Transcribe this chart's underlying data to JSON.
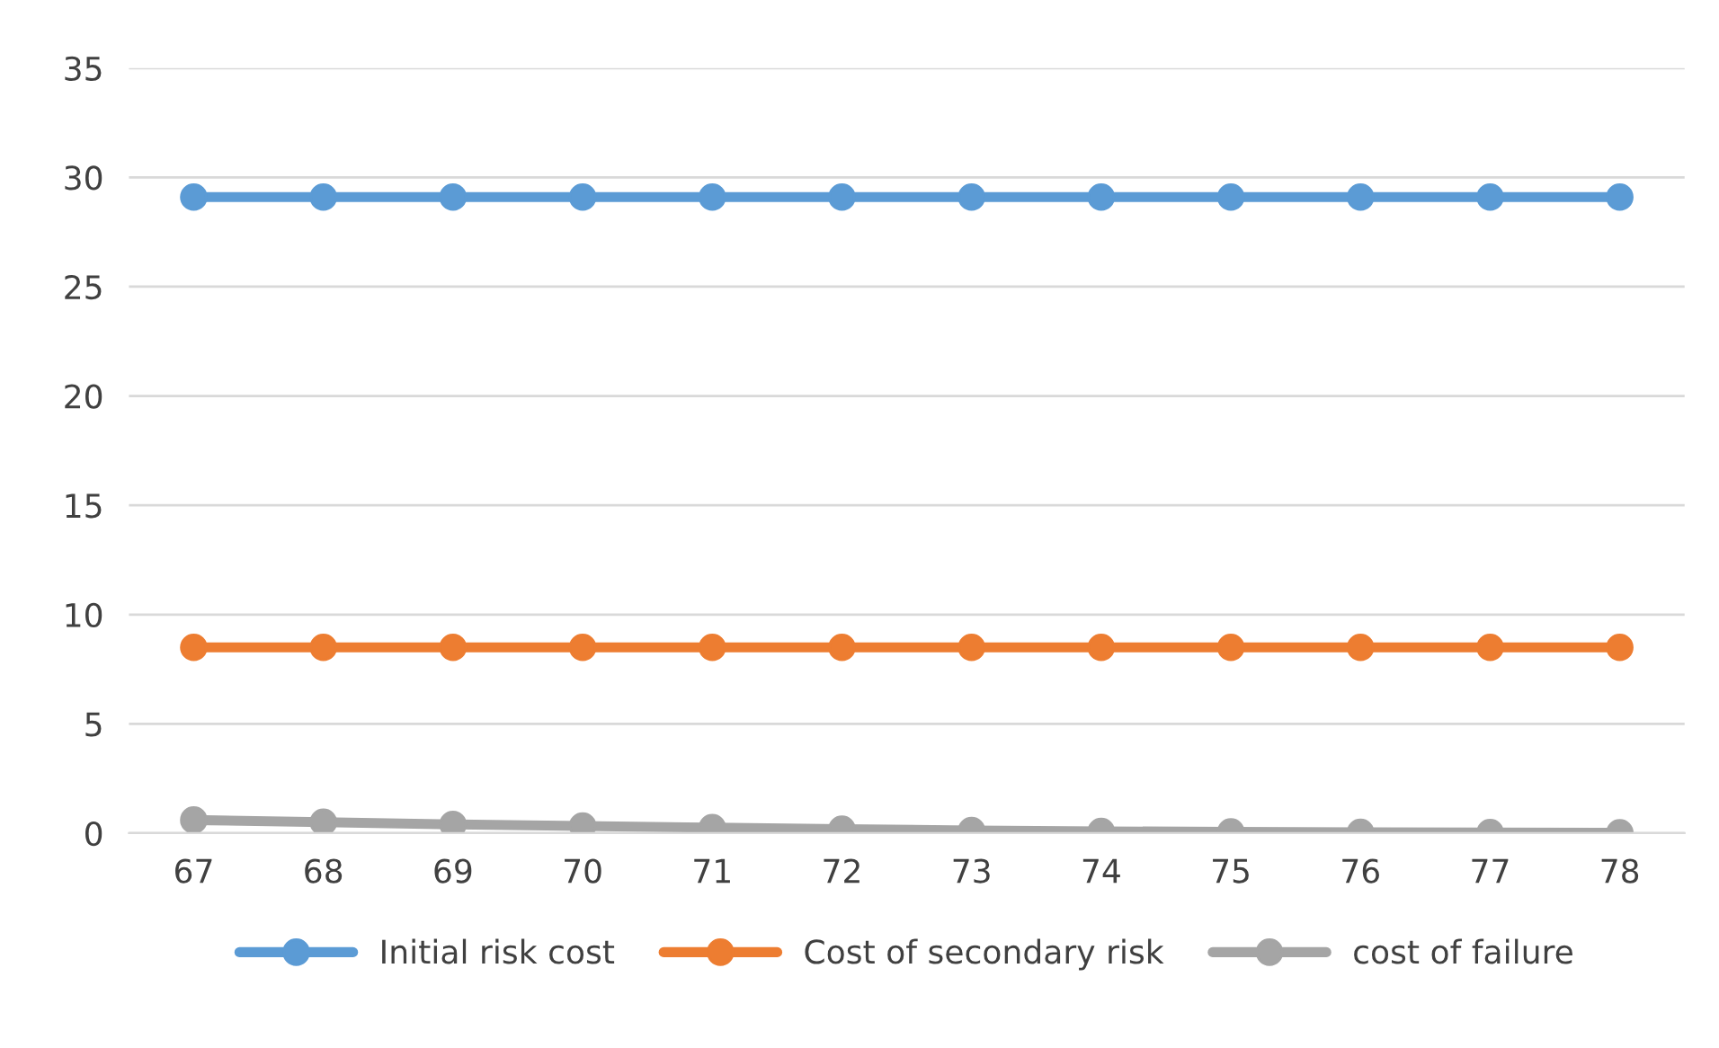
{
  "chart_data": {
    "type": "line",
    "categories": [
      "67",
      "68",
      "69",
      "70",
      "71",
      "72",
      "73",
      "74",
      "75",
      "76",
      "77",
      "78"
    ],
    "series": [
      {
        "name": "Initial risk cost",
        "color": "#5b9bd5",
        "values": [
          29.1,
          29.1,
          29.1,
          29.1,
          29.1,
          29.1,
          29.1,
          29.1,
          29.1,
          29.1,
          29.1,
          29.1
        ]
      },
      {
        "name": "Cost of secondary risk",
        "color": "#ed7d31",
        "values": [
          8.5,
          8.5,
          8.5,
          8.5,
          8.5,
          8.5,
          8.5,
          8.5,
          8.5,
          8.5,
          8.5,
          8.5
        ]
      },
      {
        "name": "cost of failure",
        "color": "#a5a5a5",
        "values": [
          0.6,
          0.5,
          0.4,
          0.33,
          0.25,
          0.18,
          0.12,
          0.08,
          0.06,
          0.04,
          0.03,
          0.02
        ]
      }
    ],
    "ylim": [
      0,
      35
    ],
    "yticks": [
      0,
      5,
      10,
      15,
      20,
      25,
      30,
      35
    ],
    "grid": "y",
    "legend": "bottom",
    "marker": "circle",
    "line_style": "solid"
  }
}
